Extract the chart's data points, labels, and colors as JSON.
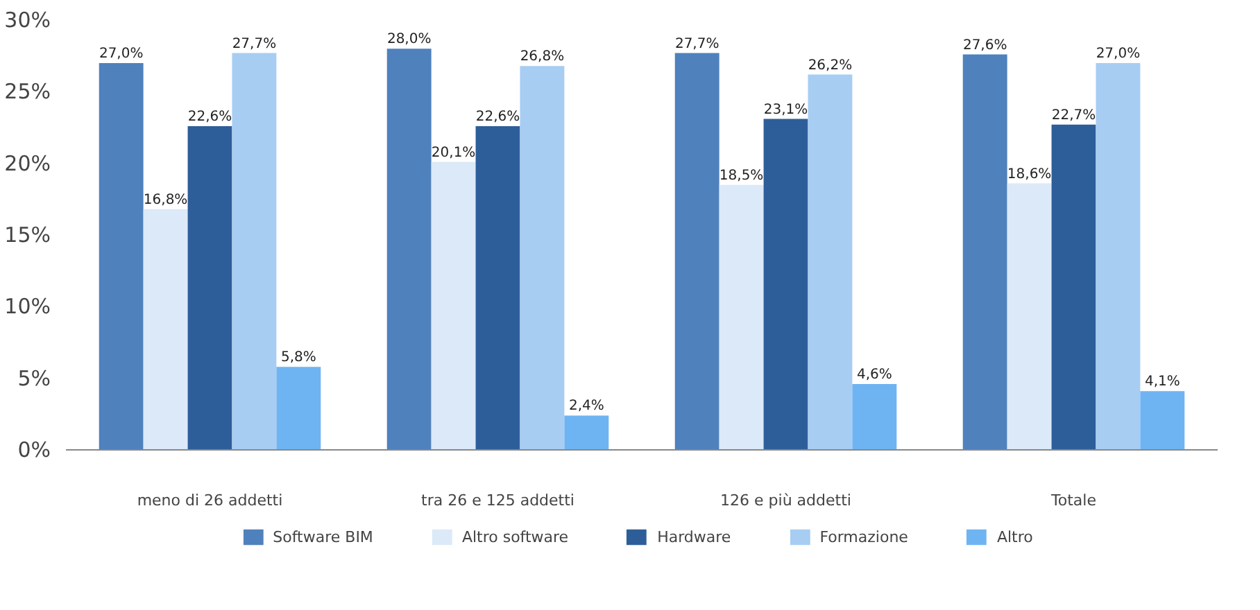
{
  "chart_data": {
    "type": "bar",
    "categories": [
      "meno di 26 addetti",
      "tra 26 e 125 addetti",
      "126 e più addetti",
      "Totale"
    ],
    "ylim": [
      0,
      30
    ],
    "yticks": [
      {
        "value": 0,
        "label": "0%"
      },
      {
        "value": 5,
        "label": "5%"
      },
      {
        "value": 10,
        "label": "10%"
      },
      {
        "value": 15,
        "label": "15%"
      },
      {
        "value": 20,
        "label": "20%"
      },
      {
        "value": 25,
        "label": "25%"
      },
      {
        "value": 30,
        "label": "30%"
      }
    ],
    "grid": false,
    "legend": "bottom",
    "series": [
      {
        "name": "Software BIM",
        "color": "#4f81bd",
        "values": [
          27.0,
          28.0,
          27.7,
          27.6
        ],
        "value_labels": [
          "27,0%",
          "28,0%",
          "27,7%",
          "27,6%"
        ]
      },
      {
        "name": "Altro software",
        "color": "#dbe9f9",
        "values": [
          16.8,
          20.1,
          18.5,
          18.6
        ],
        "value_labels": [
          "16,8%",
          "20,1%",
          "18,5%",
          "18,6%"
        ]
      },
      {
        "name": "Hardware",
        "color": "#2e5e9a",
        "values": [
          22.6,
          22.6,
          23.1,
          22.7
        ],
        "value_labels": [
          "22,6%",
          "22,6%",
          "23,1%",
          "22,7%"
        ]
      },
      {
        "name": "Formazione",
        "color": "#a7cdf3",
        "values": [
          27.7,
          26.8,
          26.2,
          27.0
        ],
        "value_labels": [
          "27,7%",
          "26,8%",
          "26,2%",
          "27,0%"
        ]
      },
      {
        "name": "Altro",
        "color": "#6fb4f2",
        "values": [
          5.8,
          2.4,
          4.6,
          4.1
        ],
        "value_labels": [
          "5,8%",
          "2,4%",
          "4,6%",
          "4,1%"
        ]
      }
    ]
  }
}
